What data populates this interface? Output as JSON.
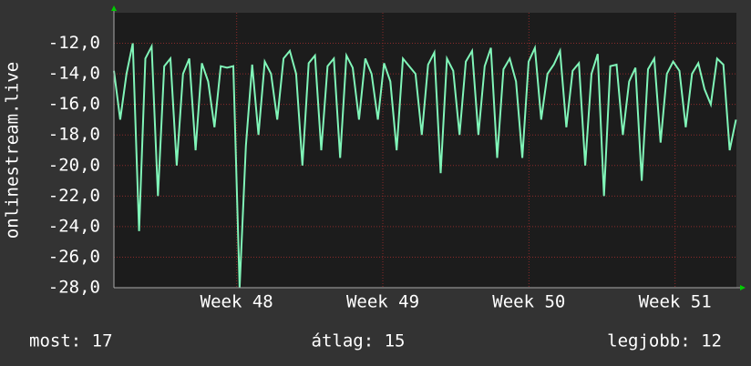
{
  "chart_data": {
    "type": "line",
    "y_label": "onlinestream.live",
    "x": [
      47.16,
      47.203,
      47.246,
      47.289,
      47.332,
      47.375,
      47.418,
      47.461,
      47.504,
      47.547,
      47.59,
      47.633,
      47.676,
      47.719,
      47.762,
      47.805,
      47.848,
      47.891,
      47.934,
      47.977,
      48.02,
      48.063,
      48.106,
      48.149,
      48.192,
      48.235,
      48.278,
      48.321,
      48.364,
      48.407,
      48.45,
      48.493,
      48.536,
      48.579,
      48.622,
      48.665,
      48.708,
      48.751,
      48.794,
      48.837,
      48.88,
      48.923,
      48.966,
      49.009,
      49.052,
      49.095,
      49.138,
      49.181,
      49.224,
      49.267,
      49.31,
      49.353,
      49.396,
      49.439,
      49.482,
      49.525,
      49.568,
      49.611,
      49.654,
      49.697,
      49.74,
      49.783,
      49.826,
      49.869,
      49.912,
      49.955,
      49.998,
      50.041,
      50.084,
      50.127,
      50.17,
      50.213,
      50.256,
      50.299,
      50.342,
      50.385,
      50.428,
      50.471,
      50.514,
      50.557,
      50.6,
      50.643,
      50.686,
      50.729,
      50.772,
      50.815,
      50.858,
      50.901,
      50.944,
      50.987,
      51.03,
      51.073,
      51.116,
      51.159,
      51.202,
      51.245,
      51.288,
      51.331,
      51.374,
      51.417
    ],
    "series": [
      {
        "name": "onlinestream.live",
        "color": "#80f5b8",
        "values": [
          -13.8,
          -17,
          -14,
          -12,
          -24.3,
          -13,
          -12.2,
          -22,
          -13.5,
          -13,
          -20,
          -14,
          -13,
          -19,
          -13.3,
          -14.5,
          -17.5,
          -13.5,
          -13.6,
          -13.5,
          -28,
          -18.7,
          -13.4,
          -18,
          -13.2,
          -14,
          -17,
          -13,
          -12.5,
          -14,
          -20,
          -13.3,
          -12.8,
          -19,
          -13.5,
          -13,
          -19.5,
          -12.8,
          -13.6,
          -17,
          -13,
          -14,
          -17,
          -13.3,
          -14.5,
          -19,
          -13,
          -13.5,
          -14,
          -18,
          -13.4,
          -12.6,
          -20.5,
          -13,
          -13.8,
          -18,
          -13.2,
          -12.5,
          -18,
          -13.5,
          -12.3,
          -19.5,
          -13.7,
          -13,
          -14.5,
          -19.5,
          -13.2,
          -12.3,
          -17,
          -14,
          -13.4,
          -12.5,
          -17.5,
          -13.8,
          -13.3,
          -20,
          -14,
          -12.7,
          -22,
          -13.5,
          -13.4,
          -18,
          -14.5,
          -13.6,
          -21,
          -13.7,
          -13,
          -18.5,
          -14,
          -13.2,
          -13.8,
          -17.5,
          -14,
          -13.3,
          -15,
          -16,
          -13,
          -13.4,
          -19,
          -17
        ]
      }
    ],
    "xlim": [
      47.16,
      51.42
    ],
    "xticks": [
      {
        "value": 48,
        "label": "Week 48"
      },
      {
        "value": 49,
        "label": "Week 49"
      },
      {
        "value": 50,
        "label": "Week 50"
      },
      {
        "value": 51,
        "label": "Week 51"
      }
    ],
    "ylim": [
      -28,
      -10
    ],
    "yticks": [
      {
        "value": -28,
        "label": "-28,0"
      },
      {
        "value": -26,
        "label": "-26,0"
      },
      {
        "value": -24,
        "label": "-24,0"
      },
      {
        "value": -22,
        "label": "-22,0"
      },
      {
        "value": -20,
        "label": "-20,0"
      },
      {
        "value": -18,
        "label": "-18,0"
      },
      {
        "value": -16,
        "label": "-16,0"
      },
      {
        "value": -14,
        "label": "-14,0"
      },
      {
        "value": -12,
        "label": "-12,0"
      }
    ],
    "grid": true,
    "footer": [
      "most: 17",
      "átlag: 15",
      "legjobb: 12"
    ]
  }
}
